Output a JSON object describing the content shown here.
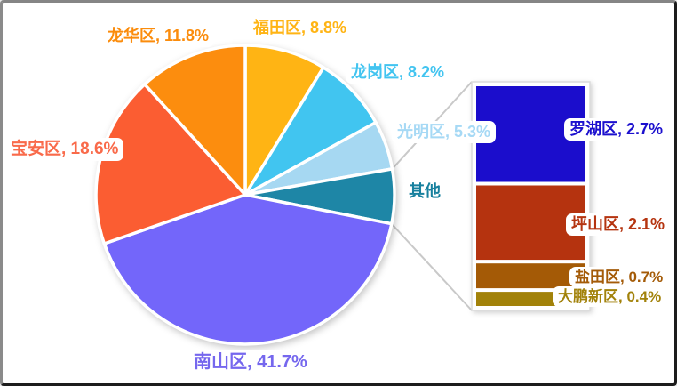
{
  "chart_data": [
    {
      "type": "pie",
      "title": "",
      "categories": [
        "福田区",
        "龙岗区",
        "光明区",
        "其他",
        "南山区",
        "宝安区",
        "龙华区"
      ],
      "values": [
        8.8,
        8.2,
        5.3,
        5.9,
        41.7,
        18.6,
        11.8
      ],
      "unit": "%",
      "colors": [
        "#FFB414",
        "#41C5F0",
        "#A6D8F2",
        "#1E86A6",
        "#7366FA",
        "#FB5D32",
        "#FC8D0E"
      ],
      "start_angle": "12-oclock-clockwise",
      "other_category": "其他",
      "slice_border_color": "#FFFFFF",
      "legend": "none",
      "annotation_style": "outside data labels: name, percent"
    },
    {
      "type": "bar",
      "title": "",
      "subtype": "stacked breakout of 其他 slice",
      "categories": [
        "罗湖区",
        "坪山区",
        "盐田区",
        "大鹏新区"
      ],
      "values": [
        2.7,
        2.1,
        0.7,
        0.4
      ],
      "unit": "%",
      "colors": [
        "#1B0DCC",
        "#B5330F",
        "#A45A06",
        "#A2820A"
      ],
      "orientation": "vertical-stack",
      "connector_color": "#C9C9C9"
    }
  ],
  "labels": {
    "longhua": {
      "text": "龙华区, 11.8%",
      "color": "#FB8C0C"
    },
    "futian": {
      "text": "福田区, 8.8%",
      "color": "#FFB414"
    },
    "longgang": {
      "text": "龙岗区, 8.2%",
      "color": "#42C4F0"
    },
    "guangming": {
      "text": "光明区, 5.3%",
      "color": "#A6D9F5"
    },
    "other": {
      "text": "其他",
      "color": "#17809E"
    },
    "nanshan": {
      "text": "南山区, 41.7%",
      "color": "#7567EE"
    },
    "baoan": {
      "text": "宝安区, 18.6%",
      "color": "#F96A4A"
    },
    "luohu": {
      "text": "罗湖区, 2.7%",
      "color": "#1C10CE"
    },
    "pingshan": {
      "text": "坪山区, 2.1%",
      "color": "#B53410"
    },
    "yantian": {
      "text": "盐田区, 0.7%",
      "color": "#A45B08"
    },
    "dapeng": {
      "text": "大鹏新区, 0.4%",
      "color": "#A2820B"
    }
  }
}
